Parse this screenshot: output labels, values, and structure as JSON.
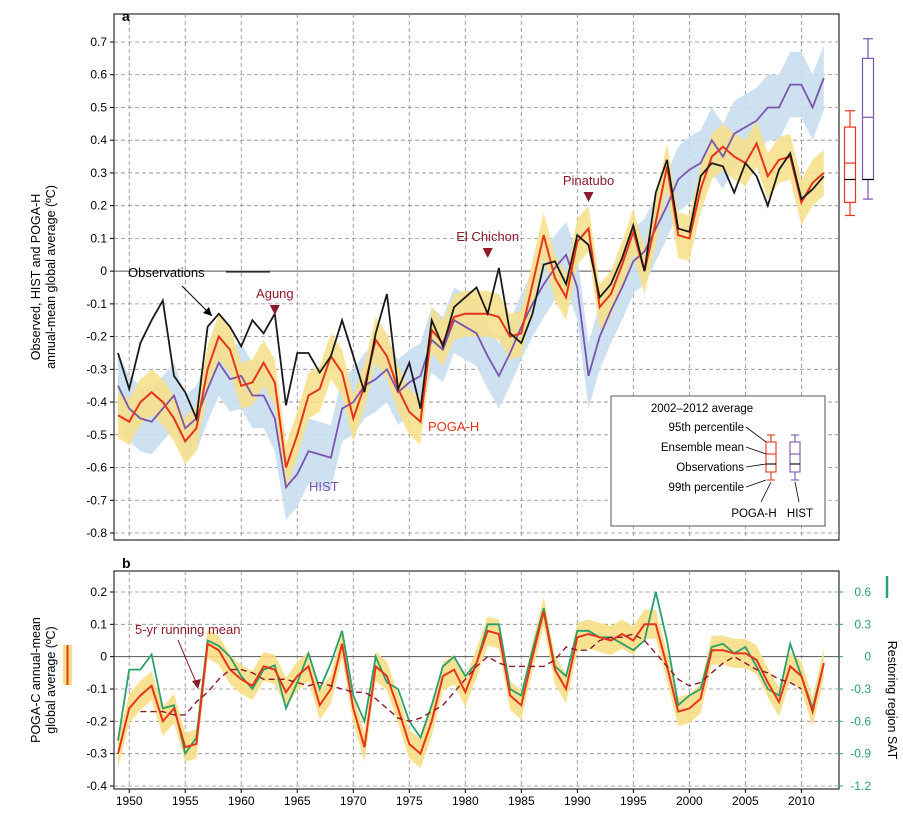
{
  "colors": {
    "observations": "#1a1a1a",
    "poga_h": "#e8341c",
    "hist": "#7a55b0",
    "hist_band": "#c9def0",
    "poga_band": "#f7df86",
    "restoring_sat": "#2aa06a",
    "running_mean": "#8b1a2b",
    "event": "#8b1a2b",
    "right_axis": "#2aa06a"
  },
  "chart_data": [
    {
      "panel": "a",
      "type": "line",
      "ylabel_line1": "Observed, HIST and POGA-H",
      "ylabel_line2": "annual-mean global average (ºC)",
      "ylim": [
        -0.8,
        0.7
      ],
      "yticks": [
        "0.7",
        "0.6",
        "0.5",
        "0.4",
        "0.3",
        "0.2",
        "0.1",
        "0",
        "-0.1",
        "-0.2",
        "-0.3",
        "-0.4",
        "-0.5",
        "-0.6",
        "-0.7",
        "-0.8"
      ],
      "xlim": [
        1949,
        2013
      ],
      "grid": true,
      "years": [
        1949,
        1950,
        1951,
        1952,
        1953,
        1954,
        1955,
        1956,
        1957,
        1958,
        1959,
        1960,
        1961,
        1962,
        1963,
        1964,
        1965,
        1966,
        1967,
        1968,
        1969,
        1970,
        1971,
        1972,
        1973,
        1974,
        1975,
        1976,
        1977,
        1978,
        1979,
        1980,
        1981,
        1982,
        1983,
        1984,
        1985,
        1986,
        1987,
        1988,
        1989,
        1990,
        1991,
        1992,
        1993,
        1994,
        1995,
        1996,
        1997,
        1998,
        1999,
        2000,
        2001,
        2002,
        2003,
        2004,
        2005,
        2006,
        2007,
        2008,
        2009,
        2010,
        2011,
        2012
      ],
      "series": [
        {
          "name": "Observations",
          "key": "observations",
          "values": [
            -0.25,
            -0.36,
            -0.22,
            -0.15,
            -0.09,
            -0.32,
            -0.37,
            -0.45,
            -0.17,
            -0.13,
            -0.17,
            -0.23,
            -0.15,
            -0.19,
            -0.13,
            -0.41,
            -0.25,
            -0.25,
            -0.31,
            -0.26,
            -0.15,
            -0.26,
            -0.37,
            -0.19,
            -0.07,
            -0.36,
            -0.28,
            -0.42,
            -0.15,
            -0.23,
            -0.11,
            -0.08,
            -0.05,
            -0.13,
            0.01,
            -0.19,
            -0.22,
            -0.13,
            0.02,
            0.03,
            -0.04,
            0.11,
            0.08,
            -0.08,
            -0.04,
            0.04,
            0.14,
            0.0,
            0.24,
            0.34,
            0.13,
            0.12,
            0.29,
            0.33,
            0.32,
            0.24,
            0.33,
            0.29,
            0.2,
            0.31,
            0.36,
            0.22,
            0.25,
            0.29
          ]
        },
        {
          "name": "POGA-H",
          "key": "poga_h",
          "values": [
            -0.44,
            -0.46,
            -0.4,
            -0.37,
            -0.4,
            -0.45,
            -0.52,
            -0.48,
            -0.3,
            -0.2,
            -0.24,
            -0.35,
            -0.34,
            -0.28,
            -0.34,
            -0.6,
            -0.5,
            -0.38,
            -0.36,
            -0.26,
            -0.31,
            -0.45,
            -0.35,
            -0.21,
            -0.26,
            -0.36,
            -0.43,
            -0.46,
            -0.18,
            -0.22,
            -0.14,
            -0.13,
            -0.13,
            -0.13,
            -0.14,
            -0.2,
            -0.19,
            -0.04,
            0.11,
            -0.02,
            -0.08,
            0.09,
            0.13,
            -0.11,
            -0.07,
            0.02,
            0.12,
            0.0,
            0.15,
            0.32,
            0.11,
            0.1,
            0.25,
            0.35,
            0.38,
            0.35,
            0.33,
            0.39,
            0.29,
            0.34,
            0.35,
            0.21,
            0.27,
            0.3
          ]
        },
        {
          "name": "HIST",
          "key": "hist",
          "values": [
            -0.35,
            -0.42,
            -0.45,
            -0.46,
            -0.42,
            -0.38,
            -0.48,
            -0.45,
            -0.36,
            -0.28,
            -0.33,
            -0.32,
            -0.38,
            -0.38,
            -0.45,
            -0.66,
            -0.62,
            -0.55,
            -0.56,
            -0.57,
            -0.42,
            -0.4,
            -0.35,
            -0.33,
            -0.3,
            -0.37,
            -0.34,
            -0.32,
            -0.21,
            -0.24,
            -0.15,
            -0.17,
            -0.19,
            -0.26,
            -0.32,
            -0.25,
            -0.17,
            -0.1,
            -0.04,
            0.01,
            0.05,
            -0.05,
            -0.32,
            -0.2,
            -0.12,
            -0.05,
            0.03,
            0.06,
            0.13,
            0.2,
            0.28,
            0.31,
            0.33,
            0.4,
            0.35,
            0.42,
            0.44,
            0.46,
            0.5,
            0.5,
            0.57,
            0.57,
            0.5,
            0.59
          ]
        }
      ],
      "band_halfwidth": {
        "poga_h": 0.07,
        "hist": 0.1
      },
      "labels": {
        "observations": "Observations",
        "poga_h": "POGA-H",
        "hist": "HIST"
      },
      "events": [
        {
          "name": "Agung",
          "year": 1963
        },
        {
          "name": "El Chichon",
          "year": 1982
        },
        {
          "name": "Pinatubo",
          "year": 1991
        }
      ],
      "boxplots": [
        {
          "series": "POGA-H",
          "p99_low": 0.17,
          "q_low": 0.21,
          "mean": 0.33,
          "obs": 0.28,
          "q_high": 0.44,
          "p99_high": 0.49
        },
        {
          "series": "HIST",
          "p99_low": 0.22,
          "q_low": 0.28,
          "mean": 0.47,
          "obs": 0.28,
          "q_high": 0.65,
          "p99_high": 0.71
        }
      ],
      "legend": {
        "title": "2002–2012 average",
        "items": [
          "95th percentile",
          "Ensemble mean",
          "Observations",
          "99th percentile"
        ],
        "box_labels": [
          "POGA-H",
          "HIST"
        ],
        "placement": "bottom-right"
      }
    },
    {
      "panel": "b",
      "type": "line",
      "ylabel_line1": "POGA-C annual-mean",
      "ylabel_line2": "global average (ºC)",
      "ylabel_right": "Restoring region SAT",
      "ylim": [
        -0.4,
        0.25
      ],
      "yticks": [
        "0.2",
        "0.1",
        "0",
        "-0.1",
        "-0.2",
        "-0.3",
        "-0.4"
      ],
      "yticks_right": [
        "0.6",
        "0.3",
        "0",
        "-0.3",
        "-0.6",
        "-0.9",
        "-1.2"
      ],
      "ylim_right": [
        -1.2,
        0.75
      ],
      "xlim": [
        1949,
        2013
      ],
      "xticks": [
        "1950",
        "1955",
        "1960",
        "1965",
        "1970",
        "1975",
        "1980",
        "1985",
        "1990",
        "1995",
        "2000",
        "2005",
        "2010"
      ],
      "grid": true,
      "years": [
        1949,
        1950,
        1951,
        1952,
        1953,
        1954,
        1955,
        1956,
        1957,
        1958,
        1959,
        1960,
        1961,
        1962,
        1963,
        1964,
        1965,
        1966,
        1967,
        1968,
        1969,
        1970,
        1971,
        1972,
        1973,
        1974,
        1975,
        1976,
        1977,
        1978,
        1979,
        1980,
        1981,
        1982,
        1983,
        1984,
        1985,
        1986,
        1987,
        1988,
        1989,
        1990,
        1991,
        1992,
        1993,
        1994,
        1995,
        1996,
        1997,
        1998,
        1999,
        2000,
        2001,
        2002,
        2003,
        2004,
        2005,
        2006,
        2007,
        2008,
        2009,
        2010,
        2011,
        2012
      ],
      "series": [
        {
          "name": "POGA-C",
          "key": "poga_h",
          "values": [
            -0.3,
            -0.16,
            -0.12,
            -0.09,
            -0.2,
            -0.16,
            -0.28,
            -0.27,
            0.04,
            0.02,
            -0.04,
            -0.07,
            -0.09,
            -0.03,
            -0.04,
            -0.11,
            -0.06,
            -0.03,
            -0.15,
            -0.1,
            0.04,
            -0.16,
            -0.28,
            -0.03,
            -0.06,
            -0.16,
            -0.27,
            -0.3,
            -0.2,
            -0.06,
            -0.04,
            -0.11,
            -0.02,
            0.08,
            0.07,
            -0.12,
            -0.15,
            0.0,
            0.14,
            -0.04,
            -0.1,
            0.06,
            0.07,
            0.06,
            0.05,
            0.07,
            0.05,
            0.1,
            0.1,
            -0.03,
            -0.17,
            -0.16,
            -0.13,
            0.02,
            0.02,
            0.01,
            0.01,
            -0.01,
            -0.08,
            -0.14,
            -0.03,
            -0.06,
            -0.17,
            -0.02
          ]
        },
        {
          "name": "Restoring region SAT",
          "key": "restoring_sat",
          "values": [
            -0.78,
            -0.12,
            -0.12,
            0.02,
            -0.48,
            -0.45,
            -0.9,
            -0.75,
            0.15,
            0.1,
            0.0,
            -0.18,
            -0.3,
            -0.12,
            -0.08,
            -0.48,
            -0.24,
            0.03,
            -0.3,
            -0.06,
            0.24,
            -0.36,
            -0.6,
            0.0,
            -0.24,
            -0.3,
            -0.6,
            -0.75,
            -0.45,
            -0.09,
            0.0,
            -0.18,
            -0.06,
            0.3,
            0.3,
            -0.3,
            -0.36,
            0.06,
            0.45,
            -0.09,
            -0.18,
            0.24,
            0.24,
            0.18,
            0.18,
            0.12,
            0.06,
            0.15,
            0.6,
            0.15,
            -0.45,
            -0.36,
            -0.3,
            0.09,
            0.12,
            0.03,
            0.09,
            -0.09,
            -0.3,
            -0.36,
            0.12,
            -0.18,
            -0.48,
            -0.06
          ]
        },
        {
          "name": "5-yr running mean",
          "key": "running_mean",
          "values": [
            null,
            null,
            -0.17,
            -0.17,
            -0.17,
            -0.18,
            -0.18,
            -0.14,
            -0.11,
            -0.07,
            -0.04,
            -0.04,
            -0.05,
            -0.07,
            -0.07,
            -0.07,
            -0.08,
            -0.09,
            -0.08,
            -0.09,
            -0.1,
            -0.11,
            -0.11,
            -0.13,
            -0.16,
            -0.19,
            -0.2,
            -0.19,
            -0.17,
            -0.15,
            -0.11,
            -0.07,
            -0.03,
            0.0,
            -0.02,
            -0.03,
            -0.03,
            -0.03,
            -0.03,
            -0.01,
            0.03,
            0.02,
            0.02,
            0.05,
            0.06,
            0.06,
            0.07,
            0.05,
            0.01,
            -0.03,
            -0.07,
            -0.09,
            -0.08,
            -0.05,
            -0.02,
            0.0,
            -0.02,
            -0.04,
            -0.05,
            -0.07,
            -0.08,
            -0.1,
            null,
            null
          ]
        }
      ],
      "band_halfwidth": {
        "poga_h": 0.045
      },
      "running_mean_label": "5-yr running mean"
    }
  ]
}
